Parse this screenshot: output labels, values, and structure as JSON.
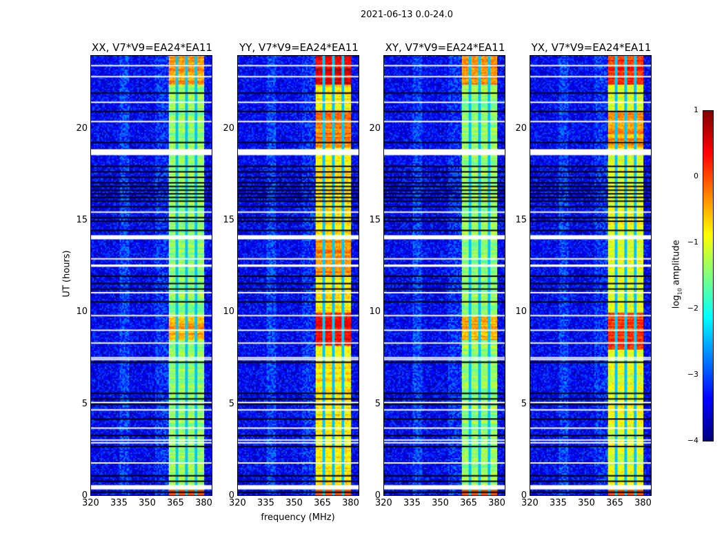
{
  "chart_data": {
    "type": "heatmap",
    "title": "2021-06-13 0.0-24.0",
    "xlabel": "frequency (MHz)",
    "ylabel": "UT (hours)",
    "xlim": [
      320,
      384.7
    ],
    "ylim": [
      0,
      24
    ],
    "xticks": [
      "320",
      "335",
      "350",
      "365",
      "380"
    ],
    "xtick_values": [
      320,
      335,
      350,
      365,
      380
    ],
    "yticks": [
      "0",
      "5",
      "10",
      "15",
      "20"
    ],
    "ytick_values": [
      0,
      5,
      10,
      15,
      20
    ],
    "colormap": "jet",
    "colorbar": {
      "label_prefix": "log",
      "label_sub": "10",
      "label_suffix": " amplitude",
      "range": [
        -4,
        1
      ],
      "ticks": [
        "1",
        "0",
        "−1",
        "−2",
        "−3",
        "−4"
      ],
      "tick_values": [
        1,
        0,
        -1,
        -2,
        -3,
        -4
      ]
    },
    "background_level": -3.4,
    "rfi_band_mhz": [
      361,
      380.5
    ],
    "band_dark_channels_mhz": [
      365.8,
      370.8,
      375.9
    ],
    "flagged_white_hours": [
      0.4,
      0.45,
      1.8,
      2.9,
      3.05,
      3.7,
      4.7,
      5.1,
      7.45,
      7.55,
      8.35,
      9.05,
      9.85,
      11.1,
      12.55,
      12.6,
      12.95,
      14.05,
      14.15,
      15.5,
      18.65,
      18.75,
      18.85,
      20.45,
      21.5,
      22.9,
      23.5
    ],
    "flagged_black_hours": [
      0.2,
      0.8,
      1.1,
      2.7,
      3.3,
      4.2,
      5.0,
      5.3,
      5.6,
      7.3,
      10.6,
      11.3,
      11.6,
      12.0,
      14.5,
      15.0,
      15.2,
      15.8,
      16.1,
      16.3,
      16.5,
      16.7,
      16.9,
      17.1,
      17.4,
      17.7,
      18.0,
      19.3,
      21.0,
      22.0
    ],
    "panels": [
      {
        "title": "XX, V7*V9=EA24*EA11",
        "band_level": -1.4,
        "hot_hours": [
          [
            8.5,
            9.8,
            -0.5
          ],
          [
            22.5,
            24,
            -0.4
          ]
        ]
      },
      {
        "title": "YY, V7*V9=EA24*EA11",
        "band_level": -0.8,
        "hot_hours": [
          [
            8.2,
            10.0,
            0.4
          ],
          [
            22.5,
            24,
            0.5
          ],
          [
            19.0,
            21.0,
            -0.2
          ],
          [
            12.0,
            14.0,
            -0.3
          ]
        ]
      },
      {
        "title": "XY, V7*V9=EA24*EA11",
        "band_level": -1.4,
        "hot_hours": [
          [
            8.5,
            9.8,
            -0.5
          ],
          [
            22.5,
            24,
            -0.3
          ]
        ]
      },
      {
        "title": "YX, V7*V9=EA24*EA11",
        "band_level": -1.0,
        "hot_hours": [
          [
            8.0,
            10.0,
            0.1
          ],
          [
            22.5,
            24,
            0.2
          ],
          [
            19.0,
            21.0,
            -0.4
          ]
        ]
      }
    ]
  }
}
